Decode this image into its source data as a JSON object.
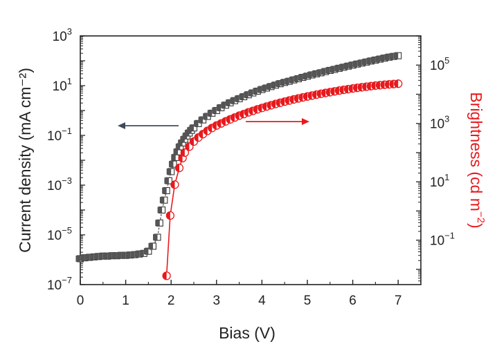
{
  "chart_data": {
    "type": "scatter",
    "xlabel": "Bias (V)",
    "ylabel_left": "Current density (mA cm⁻²)",
    "ylabel_right": "Brightness (cd m⁻²)",
    "xlim": [
      0,
      7.5
    ],
    "x_ticks": [
      "0",
      "1",
      "2",
      "3",
      "4",
      "5",
      "6",
      "7"
    ],
    "left_axis": {
      "scale": "log",
      "ylim": [
        1e-07,
        1000
      ],
      "tick_bases": [
        "10",
        "10",
        "10",
        "10",
        "10",
        "10"
      ],
      "tick_exponents": [
        "−7",
        "−5",
        "−3",
        "−1",
        "1",
        "3"
      ]
    },
    "right_axis": {
      "scale": "log",
      "ylim": [
        0.003,
        1000000
      ],
      "tick_bases": [
        "10",
        "10",
        "10",
        "10"
      ],
      "tick_exponents": [
        "−1",
        "1",
        "3",
        "5"
      ]
    },
    "colors": {
      "current": "#555555",
      "brightness": "#e8191c",
      "left_arrow": "#3d4a5c",
      "right_arrow": "#e8191c",
      "frame": "#222222"
    },
    "series": [
      {
        "axis": "left",
        "marker": "square",
        "points": [
          [
            0.0,
            1.1e-06
          ],
          [
            0.1,
            1.2e-06
          ],
          [
            0.2,
            1.25e-06
          ],
          [
            0.3,
            1.3e-06
          ],
          [
            0.4,
            1.35e-06
          ],
          [
            0.5,
            1.4e-06
          ],
          [
            0.6,
            1.4e-06
          ],
          [
            0.7,
            1.45e-06
          ],
          [
            0.8,
            1.45e-06
          ],
          [
            0.9,
            1.5e-06
          ],
          [
            1.0,
            1.5e-06
          ],
          [
            1.1,
            1.55e-06
          ],
          [
            1.2,
            1.6e-06
          ],
          [
            1.3,
            1.7e-06
          ],
          [
            1.4,
            1.8e-06
          ],
          [
            1.5,
            2.2e-06
          ],
          [
            1.6,
            3.5e-06
          ],
          [
            1.7,
            8e-06
          ],
          [
            1.75,
            3e-05
          ],
          [
            1.8,
            0.0001
          ],
          [
            1.85,
            0.00025
          ],
          [
            1.9,
            0.0006
          ],
          [
            1.95,
            0.0015
          ],
          [
            2.0,
            0.0035
          ],
          [
            2.05,
            0.007
          ],
          [
            2.1,
            0.013
          ],
          [
            2.15,
            0.022
          ],
          [
            2.2,
            0.035
          ],
          [
            2.25,
            0.05
          ],
          [
            2.3,
            0.07
          ],
          [
            2.35,
            0.095
          ],
          [
            2.4,
            0.125
          ],
          [
            2.45,
            0.16
          ],
          [
            2.5,
            0.2
          ],
          [
            2.6,
            0.3
          ],
          [
            2.7,
            0.42
          ],
          [
            2.8,
            0.58
          ],
          [
            2.9,
            0.78
          ],
          [
            3.0,
            1.0
          ],
          [
            3.1,
            1.3
          ],
          [
            3.2,
            1.65
          ],
          [
            3.3,
            2.05
          ],
          [
            3.4,
            2.5
          ],
          [
            3.5,
            3.0
          ],
          [
            3.6,
            3.6
          ],
          [
            3.7,
            4.3
          ],
          [
            3.8,
            5.1
          ],
          [
            3.9,
            6.0
          ],
          [
            4.0,
            7.0
          ],
          [
            4.1,
            8.0
          ],
          [
            4.2,
            9.2
          ],
          [
            4.3,
            10.5
          ],
          [
            4.4,
            12
          ],
          [
            4.5,
            13.5
          ],
          [
            4.6,
            15
          ],
          [
            4.7,
            17
          ],
          [
            4.8,
            19
          ],
          [
            4.9,
            21.5
          ],
          [
            5.0,
            24
          ],
          [
            5.1,
            27
          ],
          [
            5.2,
            30
          ],
          [
            5.3,
            33
          ],
          [
            5.4,
            37
          ],
          [
            5.5,
            41
          ],
          [
            5.6,
            45
          ],
          [
            5.7,
            50
          ],
          [
            5.8,
            55
          ],
          [
            5.9,
            61
          ],
          [
            6.0,
            67
          ],
          [
            6.1,
            74
          ],
          [
            6.2,
            81
          ],
          [
            6.3,
            89
          ],
          [
            6.4,
            98
          ],
          [
            6.5,
            107
          ],
          [
            6.6,
            117
          ],
          [
            6.7,
            128
          ],
          [
            6.8,
            140
          ],
          [
            6.9,
            150
          ],
          [
            7.0,
            160
          ]
        ]
      },
      {
        "axis": "right",
        "marker": "circle",
        "points": [
          [
            1.9,
            0.006
          ],
          [
            1.98,
            0.7
          ],
          [
            2.08,
            8
          ],
          [
            2.18,
            30
          ],
          [
            2.25,
            65
          ],
          [
            2.3,
            100
          ],
          [
            2.4,
            160
          ],
          [
            2.5,
            240
          ],
          [
            2.6,
            330
          ],
          [
            2.7,
            430
          ],
          [
            2.8,
            560
          ],
          [
            2.9,
            700
          ],
          [
            3.0,
            850
          ],
          [
            3.1,
            1000
          ],
          [
            3.2,
            1180
          ],
          [
            3.3,
            1380
          ],
          [
            3.4,
            1600
          ],
          [
            3.5,
            1850
          ],
          [
            3.6,
            2100
          ],
          [
            3.7,
            2400
          ],
          [
            3.8,
            2700
          ],
          [
            3.9,
            3050
          ],
          [
            4.0,
            3400
          ],
          [
            4.1,
            3800
          ],
          [
            4.2,
            4200
          ],
          [
            4.3,
            4650
          ],
          [
            4.4,
            5100
          ],
          [
            4.5,
            5600
          ],
          [
            4.6,
            6100
          ],
          [
            4.7,
            6650
          ],
          [
            4.8,
            7200
          ],
          [
            4.9,
            7800
          ],
          [
            5.0,
            8400
          ],
          [
            5.1,
            9000
          ],
          [
            5.2,
            9700
          ],
          [
            5.3,
            10400
          ],
          [
            5.4,
            11100
          ],
          [
            5.5,
            11800
          ],
          [
            5.6,
            12600
          ],
          [
            5.7,
            13400
          ],
          [
            5.8,
            14200
          ],
          [
            5.9,
            15000
          ],
          [
            6.0,
            15800
          ],
          [
            6.1,
            16600
          ],
          [
            6.2,
            17400
          ],
          [
            6.3,
            18200
          ],
          [
            6.4,
            19000
          ],
          [
            6.5,
            19800
          ],
          [
            6.6,
            20500
          ],
          [
            6.7,
            21200
          ],
          [
            6.8,
            21800
          ],
          [
            6.9,
            22400
          ],
          [
            7.0,
            23000
          ]
        ]
      }
    ]
  }
}
